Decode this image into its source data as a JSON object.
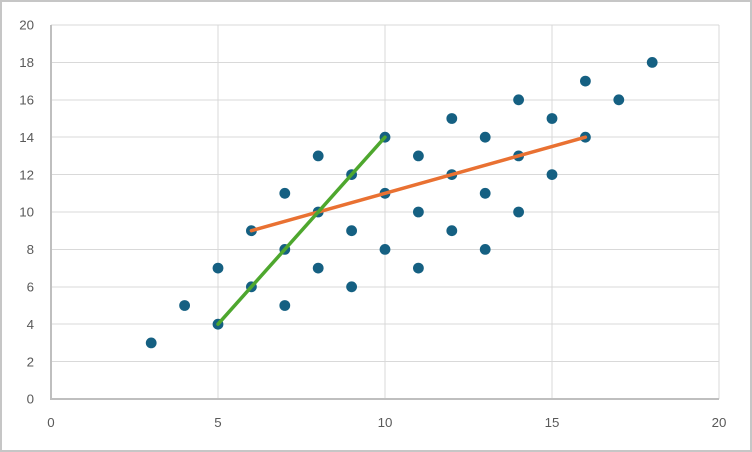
{
  "chart_data": {
    "type": "scatter",
    "title": "",
    "xlabel": "",
    "ylabel": "",
    "xlim": [
      0,
      20
    ],
    "ylim": [
      0,
      20
    ],
    "xticks": [
      0,
      5,
      10,
      15,
      20
    ],
    "yticks": [
      0,
      2,
      4,
      6,
      8,
      10,
      12,
      14,
      16,
      18,
      20
    ],
    "grid": true,
    "legend": "none",
    "series": [
      {
        "name": "scatter-points",
        "type": "scatter",
        "color": "#156082",
        "marker_radius": 5.4,
        "points": [
          [
            3,
            3
          ],
          [
            4,
            5
          ],
          [
            5,
            4
          ],
          [
            5,
            7
          ],
          [
            6,
            6
          ],
          [
            6,
            9
          ],
          [
            7,
            5
          ],
          [
            7,
            8
          ],
          [
            7,
            11
          ],
          [
            8,
            7
          ],
          [
            8,
            10
          ],
          [
            8,
            13
          ],
          [
            9,
            6
          ],
          [
            9,
            9
          ],
          [
            9,
            12
          ],
          [
            10,
            8
          ],
          [
            10,
            11
          ],
          [
            10,
            14
          ],
          [
            11,
            7
          ],
          [
            11,
            10
          ],
          [
            11,
            13
          ],
          [
            12,
            9
          ],
          [
            12,
            12
          ],
          [
            12,
            15
          ],
          [
            13,
            8
          ],
          [
            13,
            11
          ],
          [
            13,
            14
          ],
          [
            14,
            10
          ],
          [
            14,
            13
          ],
          [
            14,
            16
          ],
          [
            15,
            12
          ],
          [
            15,
            15
          ],
          [
            16,
            14
          ],
          [
            16,
            17
          ],
          [
            17,
            16
          ],
          [
            18,
            18
          ]
        ]
      },
      {
        "name": "trend-line-orange",
        "type": "line",
        "color": "#E97132",
        "stroke_width": 3.5,
        "points": [
          [
            6,
            9
          ],
          [
            16,
            14
          ]
        ]
      },
      {
        "name": "trend-line-green",
        "type": "line",
        "color": "#4EA72E",
        "stroke_width": 3.5,
        "points": [
          [
            5,
            4
          ],
          [
            10,
            14
          ]
        ]
      }
    ],
    "style": {
      "background": "#FFFFFF",
      "frame_border_color": "#C6C6C6",
      "gridline_color": "#D9D9D9",
      "axis_line_color": "#BFBFBF",
      "tick_label_color": "#595959",
      "tick_font_size": 13.3
    }
  }
}
